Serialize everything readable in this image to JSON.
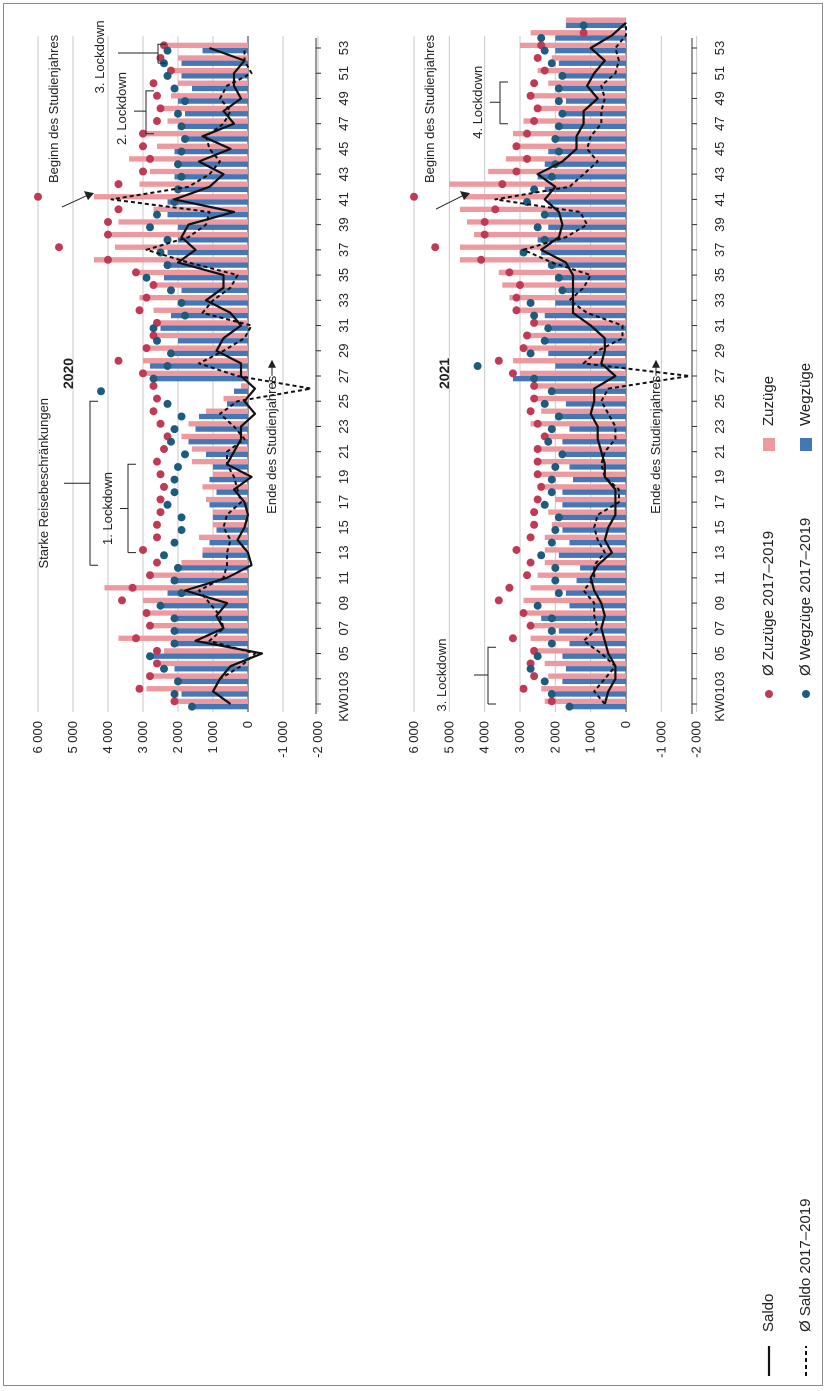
{
  "colors": {
    "zuzuege": "#ec9a9f",
    "wegzuege": "#4477b8",
    "dot_zuzuege": "#c13a55",
    "dot_wegzuege": "#1c5c7e",
    "saldo": "#111111",
    "grid": "#c8c8c8"
  },
  "legend": {
    "zuzuege": "Zuzüge",
    "wegzuege": "Wegzüge",
    "avg_zuzuege": "Ø Zuzüge 2017–2019",
    "avg_wegzuege": "Ø Wegzüge 2017–2019",
    "saldo": "Saldo",
    "avg_saldo": "Ø Saldo 2017–2019"
  },
  "annotations_2020": {
    "reise": "Starke Reisebeschränkungen",
    "lockdown1": "1. Lockdown",
    "lockdown2": "2. Lockdown",
    "lockdown3": "3. Lockdown",
    "ende": "Ende des Studienjahres",
    "beginn": "Beginn des Studienjahres"
  },
  "annotations_2021": {
    "lockdown3": "3. Lockdown",
    "lockdown4": "4. Lockdown",
    "ende": "Ende des Studienjahres",
    "beginn": "Beginn des Studienjahres"
  },
  "chart_data": [
    {
      "type": "bar",
      "title": "2020",
      "ylim": [
        -2000,
        6000
      ],
      "yticks": [
        6000,
        5000,
        4000,
        3000,
        2000,
        1000,
        0,
        -1000,
        -2000
      ],
      "ytick_labels": [
        "6 000",
        "5 000",
        "4 000",
        "3 000",
        "2 000",
        "1 000",
        "0",
        "-1 000",
        "-2 000"
      ],
      "xtick_labels": [
        "KW01",
        "03",
        "05",
        "07",
        "09",
        "11",
        "13",
        "15",
        "17",
        "19",
        "21",
        "23",
        "25",
        "27",
        "29",
        "31",
        "33",
        "35",
        "37",
        "39",
        "41",
        "43",
        "45",
        "47",
        "49",
        "51",
        "53"
      ],
      "series": [
        {
          "name": "Zuzüge",
          "kind": "bar",
          "values": [
            2200,
            2900,
            2900,
            2600,
            2400,
            3700,
            2800,
            2900,
            3000,
            4100,
            2800,
            1900,
            1300,
            1400,
            1000,
            1000,
            1200,
            1300,
            1000,
            1600,
            1600,
            1900,
            1700,
            1200,
            700,
            200,
            2900,
            3000,
            3000,
            2700,
            2700,
            2700,
            3100,
            2600,
            3100,
            4400,
            3800,
            3900,
            3700,
            2700,
            4400,
            3100,
            2800,
            3400,
            2600,
            3100,
            2300,
            2500,
            2200,
            2000,
            2300,
            2000,
            2400
          ]
        },
        {
          "name": "Wegzüge",
          "kind": "bar",
          "values": [
            1700,
            1900,
            2100,
            2100,
            2800,
            2200,
            2100,
            2000,
            2400,
            2300,
            2200,
            2000,
            1300,
            1100,
            900,
            1000,
            1100,
            900,
            1100,
            1000,
            1200,
            1700,
            1500,
            1400,
            600,
            400,
            2700,
            2800,
            2100,
            2000,
            2500,
            2200,
            1900,
            1900,
            2400,
            2400,
            2300,
            2000,
            2000,
            2300,
            2300,
            2000,
            2100,
            2000,
            2100,
            1800,
            1900,
            1800,
            2000,
            1600,
            1900,
            1900,
            1300
          ]
        },
        {
          "name": "Ø Zuzüge 2017–2019",
          "kind": "dot",
          "values": [
            2100,
            3100,
            2800,
            2600,
            2600,
            3200,
            2800,
            2900,
            3600,
            3300,
            2800,
            2600,
            3000,
            2600,
            2600,
            2500,
            2500,
            2400,
            2500,
            2600,
            2400,
            2300,
            2500,
            2700,
            2600,
            2700,
            3000,
            3700,
            2900,
            2700,
            2600,
            3100,
            2900,
            2700,
            3200,
            4000,
            5400,
            4000,
            4000,
            3700,
            6000,
            3700,
            3000,
            2800,
            3000,
            3000,
            2600,
            2500,
            2600,
            2700,
            2200,
            2500,
            2400
          ]
        },
        {
          "name": "Ø Wegzüge 2017–2019",
          "kind": "dot",
          "values": [
            1600,
            2100,
            2000,
            2400,
            2800,
            2100,
            2100,
            2100,
            2500,
            1900,
            2100,
            2000,
            2400,
            2100,
            1900,
            1900,
            2300,
            2100,
            2100,
            2000,
            1800,
            2200,
            2100,
            1900,
            2300,
            4200,
            2700,
            2300,
            2200,
            2600,
            2700,
            1800,
            1900,
            2200,
            2900,
            2300,
            2500,
            2300,
            2800,
            2600,
            2100,
            2000,
            1900,
            2000,
            1900,
            1800,
            1900,
            2000,
            1800,
            2100,
            2300,
            2400,
            2300
          ]
        },
        {
          "name": "Saldo",
          "kind": "line",
          "values": [
            500,
            1000,
            800,
            500,
            -400,
            1500,
            700,
            900,
            600,
            1800,
            600,
            -100,
            0,
            300,
            100,
            0,
            100,
            400,
            -100,
            600,
            400,
            200,
            200,
            -200,
            100,
            -200,
            200,
            200,
            900,
            700,
            200,
            500,
            1200,
            700,
            700,
            2000,
            1500,
            1900,
            1700,
            400,
            2100,
            1100,
            700,
            1400,
            500,
            1300,
            400,
            700,
            200,
            400,
            400,
            100,
            1100
          ]
        },
        {
          "name": "Ø Saldo 2017–2019",
          "kind": "dashed",
          "values": [
            500,
            1000,
            800,
            200,
            -200,
            1100,
            700,
            800,
            1100,
            1400,
            700,
            600,
            600,
            500,
            700,
            600,
            200,
            300,
            400,
            600,
            600,
            100,
            400,
            800,
            300,
            -1800,
            300,
            1400,
            700,
            100,
            -100,
            1300,
            1000,
            500,
            300,
            1700,
            2900,
            1700,
            1200,
            1100,
            3900,
            1700,
            1100,
            800,
            1100,
            1200,
            700,
            500,
            800,
            600,
            -100,
            100,
            100
          ]
        }
      ]
    },
    {
      "type": "bar",
      "title": "2021",
      "ylim": [
        -2000,
        6000
      ],
      "yticks": [
        6000,
        5000,
        4000,
        3000,
        2000,
        1000,
        0,
        -1000,
        -2000
      ],
      "ytick_labels": [
        "6 000",
        "5 000",
        "4 000",
        "3 000",
        "2 000",
        "1 000",
        "0",
        "-1 000",
        "-2 000"
      ],
      "xtick_labels": [
        "KW01",
        "03",
        "05",
        "07",
        "09",
        "11",
        "13",
        "15",
        "17",
        "19",
        "21",
        "23",
        "25",
        "27",
        "29",
        "31",
        "33",
        "35",
        "37",
        "39",
        "41",
        "43",
        "45",
        "47",
        "49",
        "51",
        "53"
      ],
      "series": [
        {
          "name": "Zuzüge",
          "kind": "bar",
          "values": [
            2300,
            2400,
            2200,
            2300,
            2700,
            2700,
            2600,
            2800,
            2900,
            2700,
            2500,
            2300,
            2300,
            2300,
            2100,
            2200,
            2000,
            2300,
            2400,
            2600,
            2600,
            2300,
            2700,
            2400,
            2600,
            2600,
            3000,
            3200,
            2800,
            2800,
            2700,
            3200,
            3300,
            3500,
            3600,
            4700,
            4700,
            4300,
            4500,
            4700,
            4600,
            5000,
            3900,
            3400,
            3200,
            3200,
            2900,
            2600,
            2800,
            2200,
            2500,
            2100,
            3000,
            2700,
            1700
          ]
        },
        {
          "name": "Wegzüge",
          "kind": "bar",
          "values": [
            1600,
            2000,
            1800,
            1700,
            1800,
            1600,
            1900,
            2400,
            1600,
            1700,
            1400,
            1300,
            1900,
            1600,
            1800,
            1900,
            1800,
            1800,
            1500,
            1600,
            1700,
            1800,
            1600,
            1900,
            1700,
            2000,
            3200,
            2000,
            2200,
            2300,
            2100,
            2300,
            2000,
            1700,
            2000,
            2200,
            2400,
            2500,
            2200,
            2200,
            2200,
            2300,
            2500,
            2300,
            2200,
            2000,
            1900,
            1800,
            1700,
            1800,
            1900,
            1900,
            2000,
            2000,
            1700
          ]
        },
        {
          "name": "Ø Zuzüge 2017–2019",
          "kind": "dot",
          "values": [
            2100,
            2900,
            2600,
            2700,
            2600,
            3200,
            2700,
            2900,
            3600,
            3300,
            2800,
            2700,
            3100,
            2700,
            2600,
            2600,
            2500,
            2400,
            2500,
            2500,
            2500,
            2300,
            2500,
            2700,
            2600,
            2600,
            3200,
            3600,
            2900,
            2800,
            2600,
            3100,
            3100,
            3000,
            3300,
            4100,
            5400,
            4000,
            4000,
            3700,
            6000,
            3500,
            3100,
            2800,
            3100,
            2800,
            2600,
            2500,
            2700,
            2600,
            2300,
            2500,
            2400,
            1200
          ]
        },
        {
          "name": "Ø Wegzüge 2017–2019",
          "kind": "dot",
          "values": [
            1600,
            2100,
            2300,
            2700,
            2500,
            2100,
            2100,
            2100,
            2500,
            1900,
            2000,
            2000,
            2400,
            2100,
            2000,
            1900,
            2300,
            2100,
            2100,
            2000,
            1800,
            2200,
            2100,
            1900,
            2300,
            2100,
            2600,
            4200,
            2700,
            2300,
            2200,
            2600,
            2700,
            1800,
            1900,
            2100,
            2900,
            2300,
            2500,
            2300,
            2800,
            2600,
            2100,
            2000,
            1900,
            2000,
            1900,
            1800,
            1900,
            1900,
            1800,
            2100,
            2300,
            2400,
            1200
          ]
        },
        {
          "name": "Saldo",
          "kind": "line",
          "values": [
            600,
            500,
            300,
            300,
            500,
            600,
            700,
            600,
            700,
            900,
            1000,
            800,
            400,
            600,
            500,
            300,
            300,
            300,
            600,
            600,
            700,
            800,
            800,
            1000,
            900,
            900,
            300,
            700,
            600,
            600,
            1000,
            1500,
            1500,
            1500,
            1500,
            1700,
            2400,
            1900,
            1800,
            1900,
            2300,
            2000,
            2500,
            1800,
            1400,
            1400,
            1200,
            1200,
            800,
            1100,
            900,
            600,
            1000,
            400,
            0
          ]
        },
        {
          "name": "Ø Saldo 2017–2019",
          "kind": "dashed",
          "values": [
            600,
            900,
            600,
            300,
            700,
            1200,
            800,
            900,
            900,
            1200,
            900,
            900,
            600,
            800,
            900,
            800,
            200,
            200,
            600,
            700,
            600,
            300,
            300,
            500,
            700,
            500,
            -1800,
            1200,
            800,
            100,
            100,
            1100,
            1600,
            1200,
            1000,
            2100,
            2900,
            1700,
            1100,
            1300,
            3700,
            1600,
            1200,
            800,
            1100,
            1000,
            700,
            700,
            600,
            700,
            300,
            200,
            300,
            0,
            0
          ]
        }
      ]
    }
  ]
}
